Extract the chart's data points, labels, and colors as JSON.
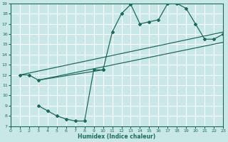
{
  "bg_color": "#c8e8e8",
  "grid_color": "#ffffff",
  "line_color": "#1a6b5a",
  "xlabel": "Humidex (Indice chaleur)",
  "xlim": [
    0,
    23
  ],
  "ylim": [
    7,
    19
  ],
  "xticks": [
    0,
    1,
    2,
    3,
    4,
    5,
    6,
    7,
    8,
    9,
    10,
    11,
    12,
    13,
    14,
    15,
    16,
    17,
    18,
    19,
    20,
    21,
    22,
    23
  ],
  "yticks": [
    7,
    8,
    9,
    10,
    11,
    12,
    13,
    14,
    15,
    16,
    17,
    18,
    19
  ],
  "curve1_x": [
    1,
    2,
    3,
    10,
    11,
    12,
    13,
    14,
    15,
    16,
    17,
    18,
    19,
    20,
    21,
    22,
    23
  ],
  "curve1_y": [
    12,
    12,
    11.5,
    12.5,
    16.2,
    18.0,
    18.9,
    17.0,
    17.2,
    17.4,
    19.0,
    19.0,
    18.5,
    17.0,
    15.5,
    15.5,
    16.0
  ],
  "line1_x": [
    1,
    23
  ],
  "line1_y": [
    12.0,
    16.2
  ],
  "line2_x": [
    3,
    23
  ],
  "line2_y": [
    11.5,
    15.2
  ],
  "curve2_x": [
    3,
    4,
    5,
    6,
    7,
    8,
    9,
    10
  ],
  "curve2_y": [
    9.0,
    8.5,
    8.0,
    7.7,
    7.5,
    7.5,
    12.5,
    12.5
  ]
}
